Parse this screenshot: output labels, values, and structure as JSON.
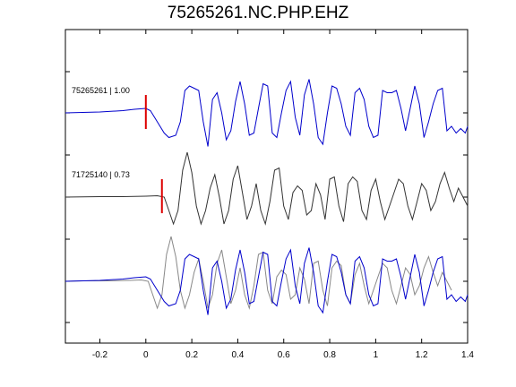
{
  "chart_data": {
    "type": "line",
    "title": "75265261.NC.PHP.EHZ",
    "xlabel": "",
    "ylabel": "",
    "xlim": [
      -0.35,
      1.4
    ],
    "xticks": [
      -0.2,
      0,
      0.2,
      0.4,
      0.6,
      0.8,
      1,
      1.2,
      1.4
    ],
    "xtick_labels": [
      "-0.2",
      "0",
      "0.2",
      "0.4",
      "0.6",
      "0.8",
      "1",
      "1.2",
      "1.4"
    ],
    "grid": false,
    "colors": {
      "primary": "#0000cc",
      "secondary": "#333333",
      "overlay": "#888888",
      "pick": "#dd0000"
    },
    "traces": [
      {
        "label": "75265261 | 1.00",
        "color": "#0000cc",
        "pick_time": 0.0,
        "x": [
          -0.35,
          -0.2,
          -0.1,
          -0.05,
          0.0,
          0.02,
          0.05,
          0.08,
          0.1,
          0.13,
          0.15,
          0.17,
          0.19,
          0.21,
          0.23,
          0.25,
          0.27,
          0.29,
          0.31,
          0.33,
          0.35,
          0.37,
          0.39,
          0.41,
          0.43,
          0.45,
          0.47,
          0.49,
          0.51,
          0.53,
          0.55,
          0.57,
          0.59,
          0.61,
          0.63,
          0.65,
          0.67,
          0.69,
          0.71,
          0.73,
          0.75,
          0.77,
          0.79,
          0.81,
          0.83,
          0.85,
          0.87,
          0.89,
          0.91,
          0.93,
          0.95,
          0.97,
          0.99,
          1.01,
          1.03,
          1.05,
          1.07,
          1.09,
          1.11,
          1.13,
          1.15,
          1.17,
          1.19,
          1.21,
          1.23,
          1.25,
          1.27,
          1.29,
          1.31,
          1.33,
          1.35,
          1.37,
          1.39,
          1.4
        ],
        "y": [
          0,
          0.02,
          0.05,
          0.08,
          0.1,
          0.05,
          -0.2,
          -0.45,
          -0.55,
          -0.5,
          -0.2,
          0.5,
          0.6,
          0.55,
          0.5,
          -0.2,
          -0.75,
          0.3,
          0.45,
          0.0,
          -0.6,
          -0.4,
          0.25,
          0.7,
          0.2,
          -0.5,
          -0.45,
          0.1,
          0.65,
          0.6,
          -0.45,
          -0.55,
          0.0,
          0.5,
          0.7,
          -0.1,
          -0.5,
          0.4,
          0.75,
          0.2,
          -0.55,
          -0.7,
          0.0,
          0.6,
          0.55,
          0.2,
          -0.3,
          -0.5,
          0.45,
          0.55,
          0.3,
          -0.3,
          -0.55,
          -0.5,
          0.5,
          0.45,
          0.45,
          0.5,
          0.1,
          -0.4,
          0.1,
          0.6,
          0.2,
          -0.55,
          -0.2,
          0.2,
          0.5,
          0.55,
          -0.4,
          -0.3,
          -0.45,
          -0.35,
          -0.45,
          -0.3
        ]
      },
      {
        "label": "71725140 | 0.73",
        "color": "#333333",
        "pick_time": 0.07,
        "x": [
          -0.35,
          -0.2,
          -0.1,
          0.0,
          0.05,
          0.08,
          0.1,
          0.12,
          0.14,
          0.16,
          0.18,
          0.2,
          0.22,
          0.24,
          0.26,
          0.28,
          0.3,
          0.32,
          0.34,
          0.36,
          0.38,
          0.4,
          0.42,
          0.44,
          0.46,
          0.48,
          0.5,
          0.52,
          0.54,
          0.56,
          0.58,
          0.6,
          0.62,
          0.64,
          0.66,
          0.68,
          0.7,
          0.72,
          0.74,
          0.76,
          0.78,
          0.8,
          0.82,
          0.84,
          0.86,
          0.88,
          0.9,
          0.92,
          0.94,
          0.96,
          0.98,
          1.0,
          1.02,
          1.04,
          1.06,
          1.08,
          1.1,
          1.12,
          1.14,
          1.16,
          1.18,
          1.2,
          1.22,
          1.24,
          1.26,
          1.28,
          1.3,
          1.32,
          1.34,
          1.36,
          1.38,
          1.4
        ],
        "y": [
          0,
          0.01,
          0.01,
          0.02,
          0.03,
          0.0,
          -0.3,
          -0.6,
          -0.3,
          0.6,
          1.0,
          0.55,
          -0.2,
          -0.6,
          -0.3,
          0.2,
          0.5,
          0.0,
          -0.6,
          -0.3,
          0.4,
          0.7,
          0.1,
          -0.5,
          -0.2,
          0.3,
          -0.3,
          -0.6,
          -0.1,
          0.6,
          0.65,
          -0.2,
          -0.5,
          0.1,
          0.25,
          0.15,
          -0.4,
          -0.3,
          0.3,
          0.05,
          -0.5,
          0.4,
          0.45,
          -0.2,
          -0.55,
          0.3,
          0.45,
          0.35,
          -0.3,
          -0.5,
          0.15,
          0.4,
          -0.1,
          -0.5,
          -0.2,
          0.1,
          0.4,
          0.3,
          -0.2,
          -0.5,
          -0.1,
          0.3,
          0.15,
          -0.3,
          -0.1,
          0.3,
          0.55,
          0.2,
          -0.1,
          0.2,
          0.0,
          -0.2
        ]
      },
      {
        "label": "",
        "color": "#888888",
        "overlay": true,
        "x": [
          -0.35,
          -0.2,
          -0.1,
          0.0,
          0.05,
          0.08,
          0.1,
          0.12,
          0.14,
          0.16,
          0.18,
          0.2,
          0.22,
          0.24,
          0.26,
          0.28,
          0.3,
          0.32,
          0.34,
          0.36,
          0.38,
          0.4,
          0.42,
          0.44,
          0.46,
          0.48,
          0.5,
          0.52,
          0.54,
          0.56,
          0.58,
          0.6,
          0.62,
          0.64,
          0.66,
          0.68,
          0.7,
          0.72,
          0.74,
          0.76,
          0.78,
          0.8,
          0.82,
          0.84,
          0.86,
          0.88,
          0.9,
          0.92,
          0.94,
          0.96,
          0.98,
          1.0,
          1.02,
          1.04,
          1.06,
          1.08,
          1.1,
          1.12,
          1.14,
          1.16,
          1.18,
          1.2,
          1.22,
          1.24,
          1.26,
          1.28,
          1.3,
          1.32,
          1.34,
          1.36,
          1.38,
          1.4
        ],
        "y": [
          0,
          0.01,
          0.01,
          0.02,
          0.03,
          0.0,
          -0.3,
          -0.6,
          -0.3,
          0.6,
          1.0,
          0.55,
          -0.2,
          -0.6,
          -0.3,
          0.2,
          0.5,
          0.0,
          -0.6,
          -0.3,
          0.4,
          0.7,
          0.1,
          -0.5,
          -0.2,
          0.3,
          -0.3,
          -0.6,
          -0.1,
          0.6,
          0.65,
          -0.2,
          -0.5,
          0.1,
          0.25,
          0.15,
          -0.4,
          -0.3,
          0.3,
          0.05,
          -0.5,
          0.4,
          0.45,
          -0.2,
          -0.55,
          0.3,
          0.45,
          0.35,
          -0.3,
          -0.5,
          0.15,
          0.4,
          -0.1,
          -0.5,
          -0.2,
          0.1,
          0.4,
          0.3,
          -0.2,
          -0.5,
          -0.1,
          0.3,
          0.15,
          -0.3,
          -0.1,
          0.3,
          0.55,
          0.2,
          -0.1,
          0.2,
          0.0,
          -0.2
        ],
        "shift": -0.07
      },
      {
        "label": "",
        "color": "#0000cc",
        "overlay": true,
        "copy_of": 0
      }
    ]
  }
}
